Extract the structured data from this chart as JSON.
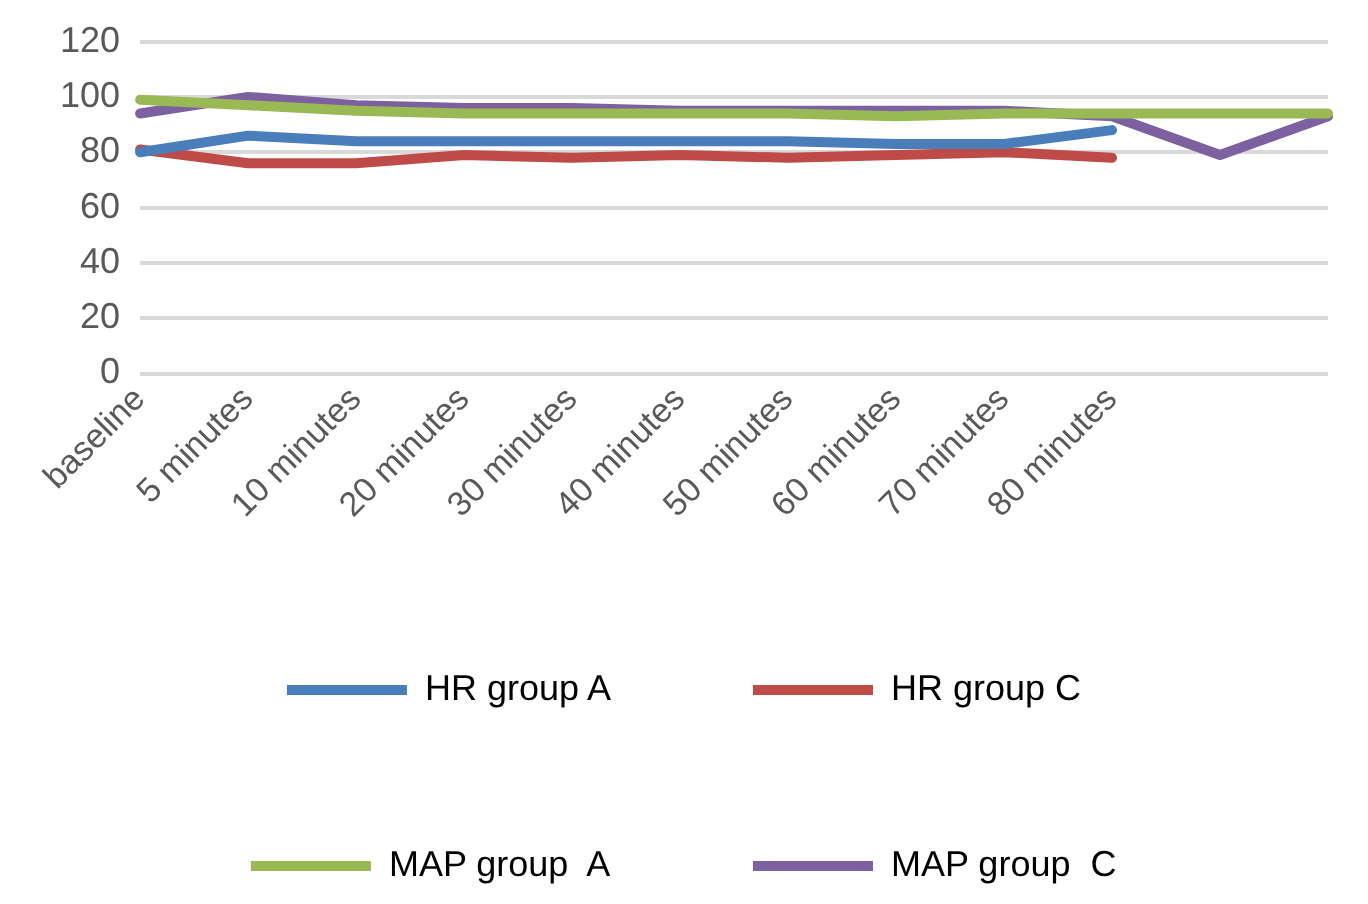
{
  "chart_data": {
    "type": "line",
    "categories": [
      "baseline",
      "5 minutes",
      "10 minutes",
      "20 minutes",
      "30 minutes",
      "40 minutes",
      "50 minutes",
      "60 minutes",
      "70 minutes",
      "80 minutes",
      null,
      null
    ],
    "series": [
      {
        "name": "HR group A",
        "color": "#4a7ebb",
        "values": [
          80,
          86,
          84,
          84,
          84,
          84,
          84,
          83,
          83,
          88,
          null,
          null
        ]
      },
      {
        "name": "HR group C",
        "color": "#be4b48",
        "values": [
          81,
          76,
          76,
          79,
          78,
          79,
          78,
          79,
          80,
          78,
          null,
          null
        ]
      },
      {
        "name": "MAP group  A",
        "color": "#98b954",
        "values": [
          99,
          97,
          95,
          94,
          94,
          94,
          94,
          93,
          94,
          94,
          94,
          94
        ]
      },
      {
        "name": "MAP group  C",
        "color": "#7d60a0",
        "values": [
          94,
          100,
          97,
          96,
          96,
          95,
          95,
          95,
          95,
          93,
          79,
          93
        ]
      }
    ],
    "ylim": [
      0,
      120
    ],
    "yticks": [
      0,
      20,
      40,
      60,
      80,
      100,
      120
    ],
    "grid": "y",
    "legend": "bottom",
    "marker": "none",
    "line_style": "solid"
  }
}
